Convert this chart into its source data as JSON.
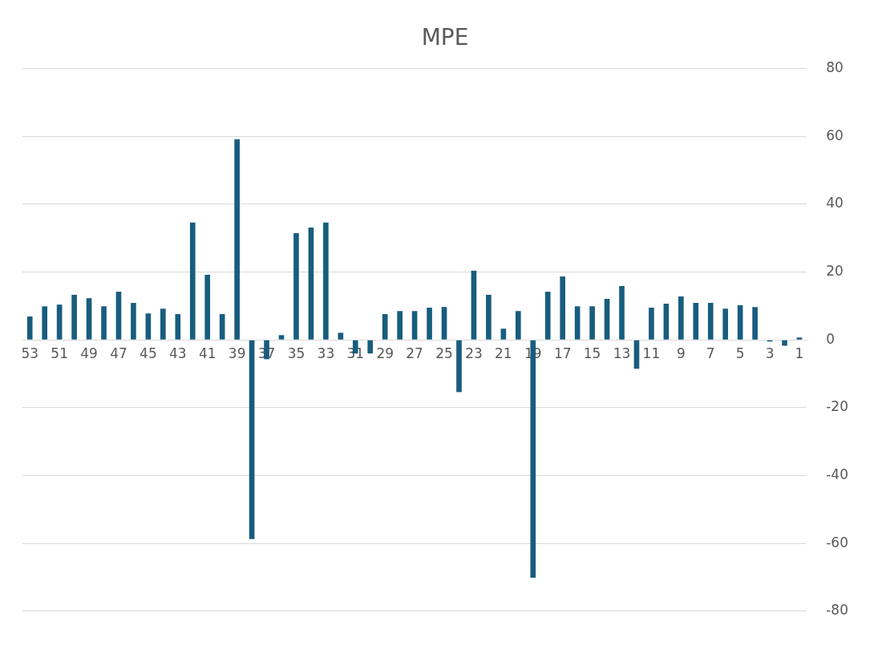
{
  "chart_data": {
    "type": "bar",
    "title": "MPE",
    "categories": [
      "53",
      null,
      "51",
      null,
      "49",
      null,
      "47",
      null,
      "45",
      null,
      "43",
      null,
      "41",
      null,
      "39",
      null,
      "37",
      null,
      "35",
      null,
      "33",
      null,
      "31",
      null,
      "29",
      null,
      "27",
      null,
      "25",
      null,
      "23",
      null,
      "21",
      null,
      "19",
      null,
      "17",
      null,
      "15",
      null,
      "13",
      null,
      "11",
      null,
      "9",
      null,
      "7",
      null,
      "5",
      null,
      "3",
      null,
      "1"
    ],
    "values": [
      6.9,
      9.9,
      10.4,
      13.3,
      12.3,
      9.9,
      14.2,
      10.9,
      7.8,
      9.2,
      7.6,
      34.6,
      19.2,
      7.6,
      59.2,
      -58.7,
      -5.7,
      1.4,
      31.5,
      33.1,
      34.6,
      2.1,
      -4,
      -4,
      7.6,
      8.5,
      8.5,
      9.5,
      9.7,
      -15.4,
      20.4,
      13.3,
      3.3,
      8.5,
      -70.1,
      14.2,
      18.7,
      9.9,
      9.9,
      12.1,
      15.9,
      -8.5,
      9.5,
      10.7,
      12.8,
      10.9,
      10.9,
      9.2,
      10.2,
      9.7,
      -0.5,
      -1.7,
      0.7
    ],
    "color": "#175d7e",
    "ylim": [
      -80,
      80
    ],
    "yticks": [
      -80,
      -60,
      -40,
      -20,
      0,
      20,
      40,
      60,
      80
    ],
    "grid": "y",
    "legend": false
  }
}
